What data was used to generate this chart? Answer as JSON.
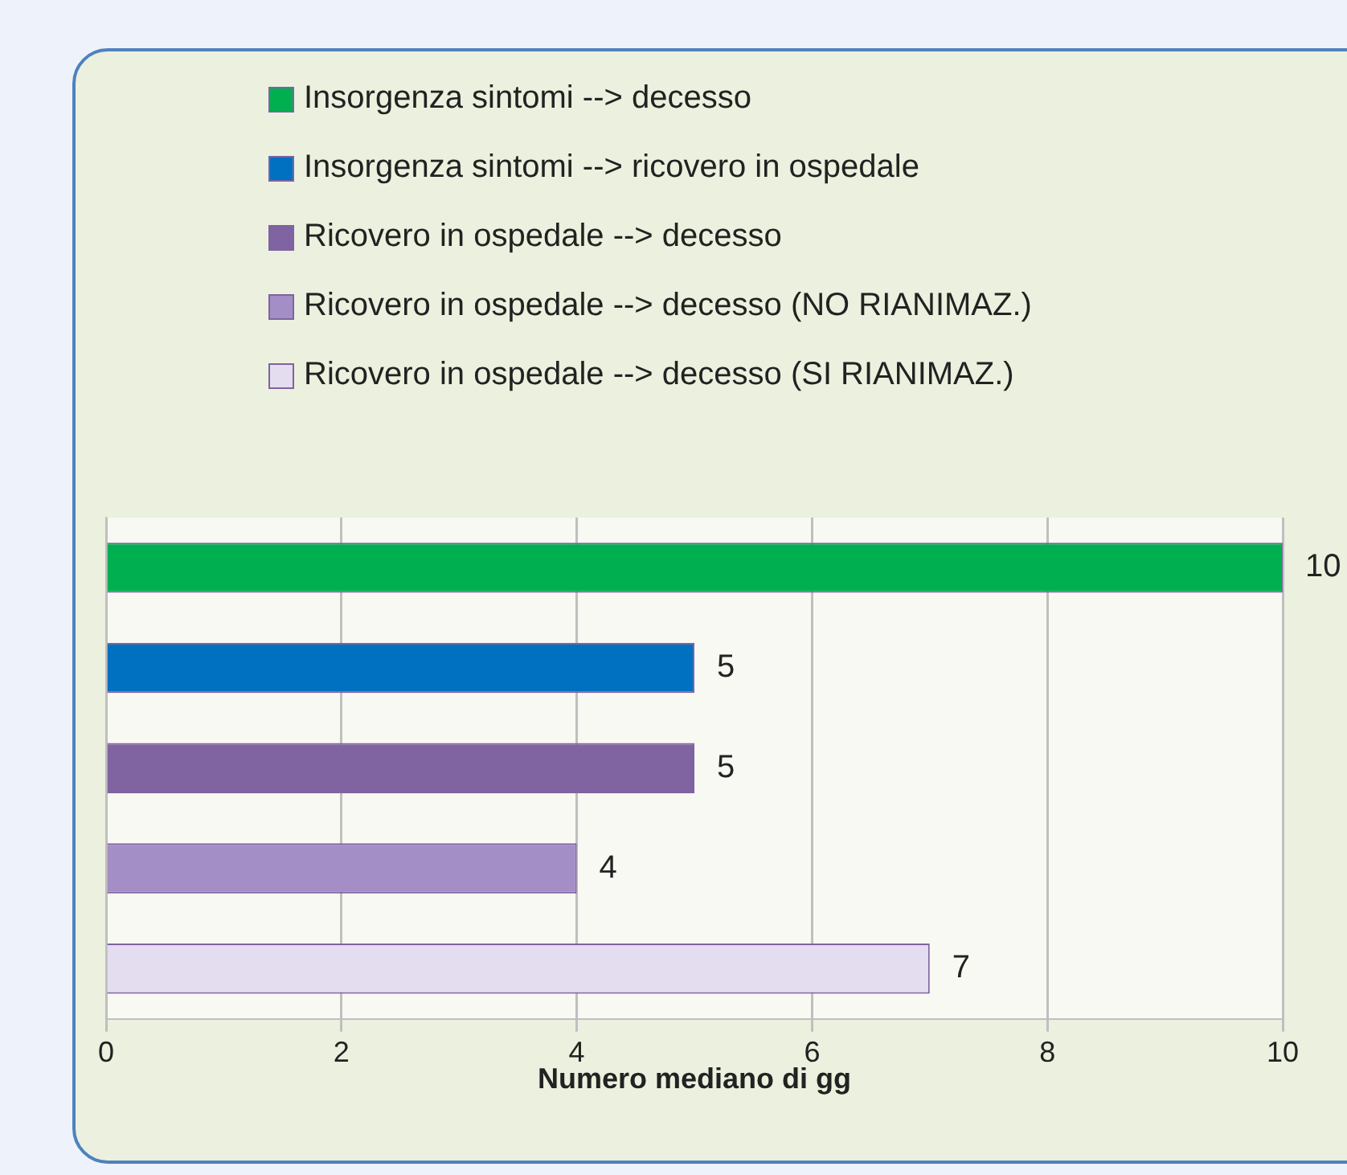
{
  "chart_data": {
    "type": "bar",
    "orientation": "horizontal",
    "categories": [
      null,
      null,
      null,
      null,
      null
    ],
    "series": [
      {
        "name": "Insorgenza sintomi --> decesso",
        "color": "#00b050",
        "values": [
          10,
          null,
          null,
          null,
          null
        ]
      },
      {
        "name": "Insorgenza sintomi --> ricovero in ospedale",
        "color": "#0070c0",
        "values": [
          null,
          5,
          null,
          null,
          null
        ]
      },
      {
        "name": "Ricovero in ospedale --> decesso",
        "color": "#8064a2",
        "values": [
          null,
          null,
          5,
          null,
          null
        ]
      },
      {
        "name": "Ricovero in ospedale --> decesso (NO RIANIMAZ.)",
        "color": "#a48ec6",
        "values": [
          null,
          null,
          null,
          4,
          null
        ]
      },
      {
        "name": "Ricovero in ospedale --> decesso (SI RIANIMAZ.)",
        "color": "#e4dcef",
        "values": [
          null,
          null,
          null,
          null,
          7
        ]
      }
    ],
    "xlim": [
      0,
      10
    ],
    "xticks": [
      0,
      2,
      4,
      6,
      8,
      10
    ],
    "xlabel": "Numero mediano di gg",
    "grid": "x",
    "legend": "top",
    "tick_labels": "x",
    "data_labels": true
  }
}
